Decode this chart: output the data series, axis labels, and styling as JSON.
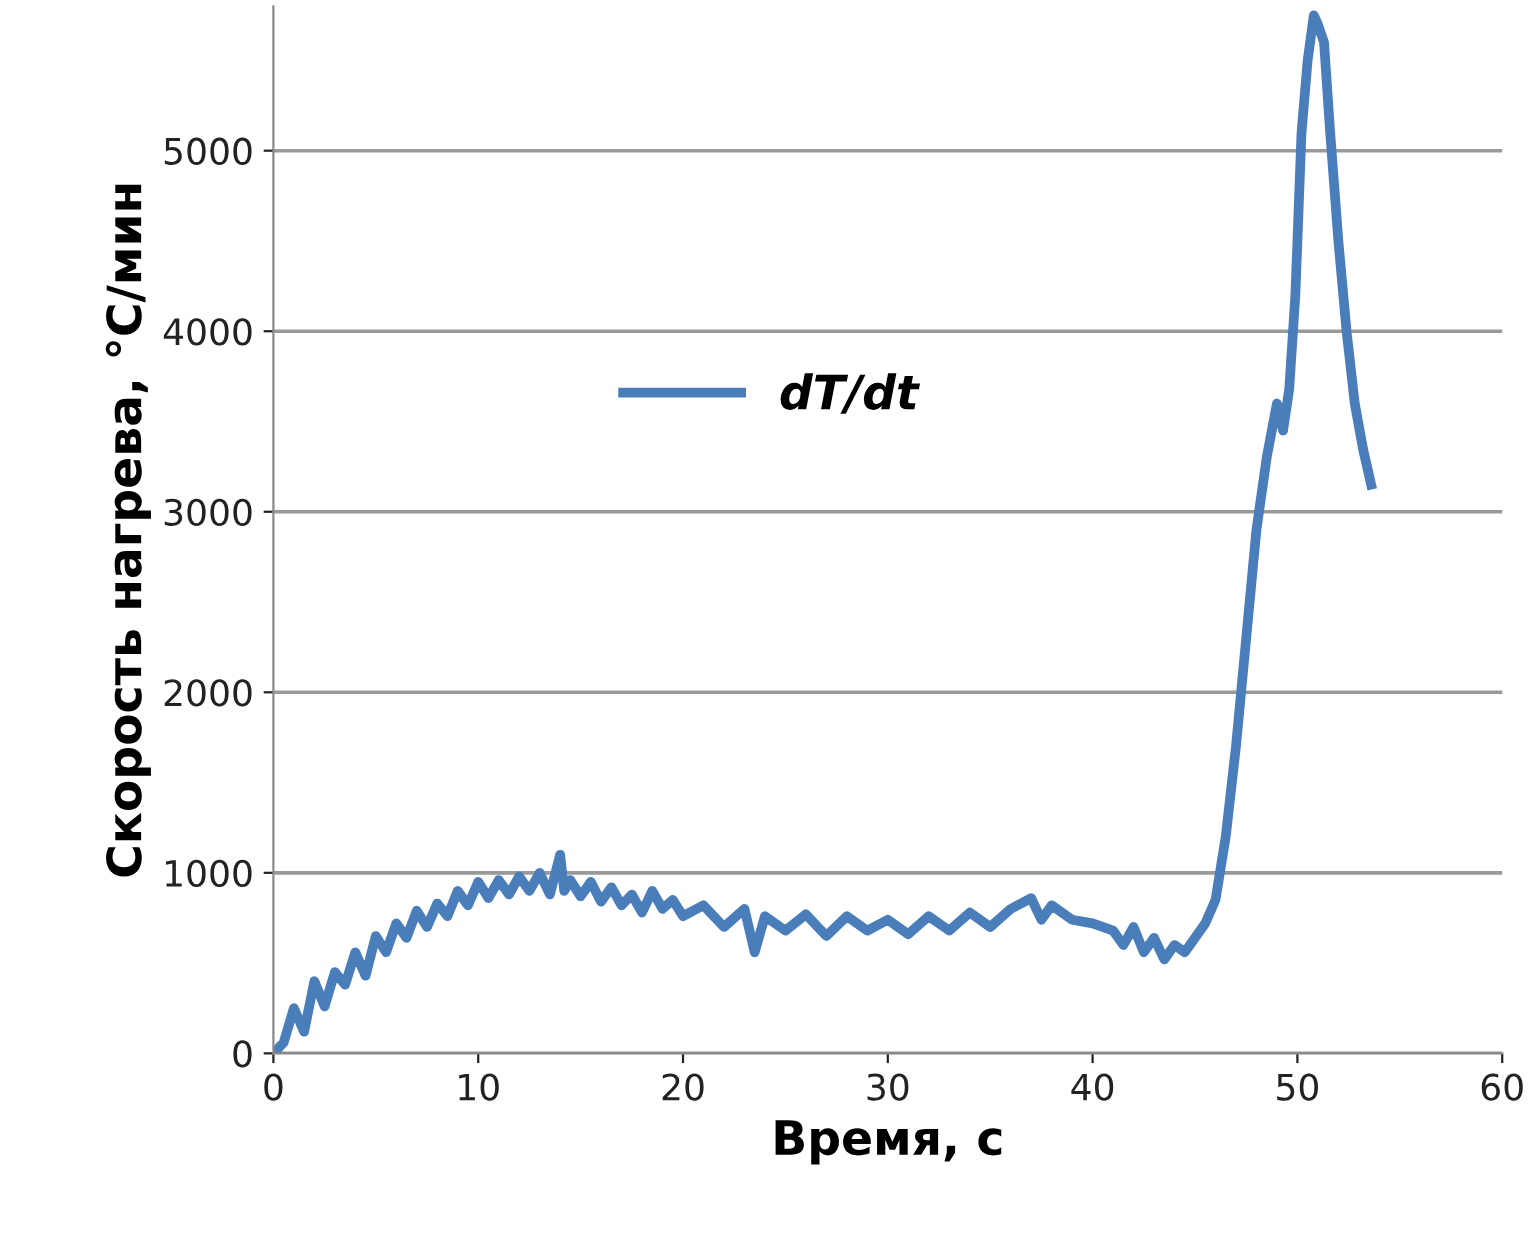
{
  "chart_data": {
    "type": "line",
    "xlabel": "Время, с",
    "ylabel": "Скорость нагрева, °С/мин",
    "xlim": [
      0,
      60
    ],
    "xticks": [
      0,
      10,
      20,
      30,
      40,
      50,
      60
    ],
    "ylim": [
      0,
      5800
    ],
    "yticks": [
      0,
      1000,
      2000,
      3000,
      4000,
      5000
    ],
    "grid": "y",
    "legend": "top left",
    "marker": "none",
    "line_style": "solid",
    "series": [
      {
        "name": "dT/dt",
        "color": "#4a7ebb",
        "x": [
          0,
          0.5,
          1,
          1.5,
          2,
          2.5,
          3,
          3.5,
          4,
          4.5,
          5,
          5.5,
          6,
          6.5,
          7,
          7.5,
          8,
          8.5,
          9,
          9.5,
          10,
          10.5,
          11,
          11.5,
          12,
          12.5,
          13,
          13.5,
          14,
          14.2,
          14.5,
          15,
          15.5,
          16,
          16.5,
          17,
          17.5,
          18,
          18.5,
          19,
          19.5,
          20,
          21,
          22,
          23,
          23.5,
          24,
          25,
          26,
          27,
          28,
          29,
          30,
          31,
          32,
          33,
          34,
          35,
          36,
          37,
          37.5,
          38,
          39,
          40,
          41,
          41.5,
          42,
          42.5,
          43,
          43.5,
          44,
          44.5,
          45,
          45.5,
          46,
          46.5,
          47,
          47.5,
          48,
          48.5,
          49,
          49.3,
          49.6,
          49.9,
          50.2,
          50.5,
          50.8,
          51,
          51.3,
          51.6,
          52,
          52.4,
          52.8,
          53.2,
          53.6
        ],
        "values": [
          0,
          60,
          250,
          120,
          400,
          260,
          450,
          380,
          560,
          430,
          650,
          560,
          720,
          640,
          790,
          700,
          830,
          760,
          900,
          820,
          950,
          860,
          960,
          880,
          980,
          900,
          1000,
          880,
          1100,
          900,
          960,
          870,
          950,
          840,
          920,
          820,
          880,
          780,
          900,
          800,
          850,
          760,
          820,
          700,
          800,
          560,
          760,
          680,
          770,
          650,
          760,
          680,
          740,
          660,
          760,
          680,
          780,
          700,
          800,
          860,
          740,
          820,
          740,
          720,
          680,
          600,
          700,
          560,
          640,
          520,
          600,
          560,
          640,
          720,
          850,
          1200,
          1700,
          2300,
          2900,
          3300,
          3600,
          3450,
          3680,
          4200,
          5100,
          5500,
          5750,
          5700,
          5600,
          5100,
          4500,
          4000,
          3600,
          3350,
          3150
        ]
      }
    ]
  }
}
